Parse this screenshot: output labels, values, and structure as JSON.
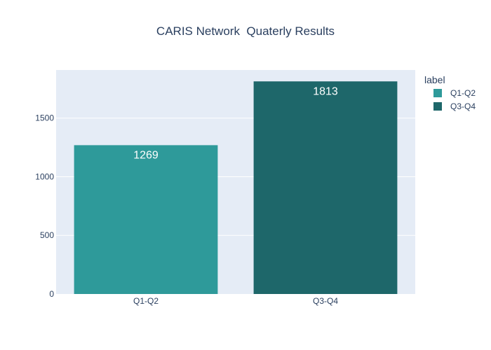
{
  "chart_data": {
    "type": "bar",
    "title": "CARIS Network  Quaterly Results",
    "categories": [
      "Q1-Q2",
      "Q3-Q4"
    ],
    "values": [
      1269,
      1813
    ],
    "bar_labels": [
      "1269",
      "1813"
    ],
    "ylim": [
      0,
      1910
    ],
    "yticks": [
      0,
      500,
      1000,
      1500
    ],
    "ytick_labels": [
      "0",
      "500",
      "1000",
      "1500"
    ],
    "grid": true,
    "legend": {
      "title": "label",
      "placement": "top-right",
      "entries": [
        "Q1-Q2",
        "Q3-Q4"
      ]
    },
    "colors": [
      "#2e9a9a",
      "#1e676a"
    ],
    "plot_background": "#e5ecf6",
    "text_color": "#2a3f5f"
  }
}
